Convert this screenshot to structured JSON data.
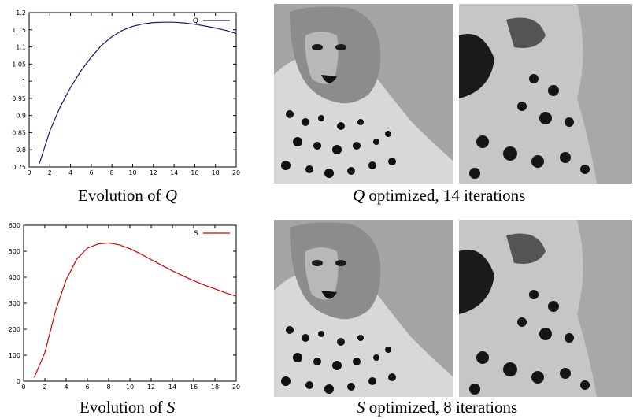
{
  "chart_data": [
    {
      "type": "line",
      "title": "",
      "xlabel": "",
      "ylabel": "",
      "xlim": [
        0,
        20
      ],
      "ylim": [
        0.75,
        1.2
      ],
      "x_ticks": [
        0,
        2,
        4,
        6,
        8,
        10,
        12,
        14,
        16,
        18,
        20
      ],
      "y_ticks": [
        0.75,
        0.8,
        0.85,
        0.9,
        0.95,
        1,
        1.05,
        1.1,
        1.15,
        1.2
      ],
      "x_tick_labels": [
        "0",
        "2",
        "4",
        "6",
        "8",
        "10",
        "12",
        "14",
        "16",
        "18",
        "20"
      ],
      "y_tick_labels": [
        "0.75",
        "0.8",
        "0.85",
        "0.9",
        "0.95",
        "1",
        "1.05",
        "1.1",
        "1.15",
        "1.2"
      ],
      "legend_position": "top-right",
      "grid": false,
      "series": [
        {
          "name": "Q",
          "color": "#1a1a6e",
          "x": [
            1,
            2,
            3,
            4,
            5,
            6,
            7,
            8,
            9,
            10,
            11,
            12,
            13,
            14,
            15,
            16,
            17,
            18,
            19,
            20
          ],
          "y": [
            0.76,
            0.855,
            0.925,
            0.982,
            1.03,
            1.07,
            1.105,
            1.13,
            1.148,
            1.16,
            1.167,
            1.171,
            1.172,
            1.172,
            1.17,
            1.166,
            1.161,
            1.155,
            1.148,
            1.139
          ]
        }
      ]
    },
    {
      "type": "line",
      "title": "",
      "xlabel": "",
      "ylabel": "",
      "xlim": [
        0,
        20
      ],
      "ylim": [
        0,
        600
      ],
      "x_ticks": [
        0,
        2,
        4,
        6,
        8,
        10,
        12,
        14,
        16,
        18,
        20
      ],
      "y_ticks": [
        0,
        100,
        200,
        300,
        400,
        500,
        600
      ],
      "x_tick_labels": [
        "0",
        "2",
        "4",
        "6",
        "8",
        "10",
        "12",
        "14",
        "16",
        "18",
        "20"
      ],
      "y_tick_labels": [
        "0",
        "100",
        "200",
        "300",
        "400",
        "500",
        "600"
      ],
      "legend_position": "top-right",
      "grid": false,
      "series": [
        {
          "name": "S",
          "color": "#dd0000",
          "x": [
            1,
            2,
            3,
            4,
            5,
            6,
            7,
            8,
            9,
            10,
            11,
            12,
            13,
            14,
            15,
            16,
            17,
            18,
            19,
            20
          ],
          "y": [
            15,
            110,
            270,
            390,
            470,
            512,
            528,
            532,
            525,
            510,
            490,
            468,
            446,
            425,
            405,
            387,
            370,
            355,
            340,
            327
          ]
        }
      ]
    }
  ],
  "captions": {
    "q_chart": {
      "prefix": "Evolution of ",
      "symbol": "Q",
      "suffix": ""
    },
    "s_chart": {
      "prefix": "Evolution of ",
      "symbol": "S",
      "suffix": ""
    },
    "q_images": {
      "prefix": "",
      "symbol": "Q",
      "suffix": " optimized, 14 iterations"
    },
    "s_images": {
      "prefix": "",
      "symbol": "S",
      "suffix": " optimized, 8 iterations"
    }
  },
  "images": {
    "q_full": "cheetah-icon",
    "q_detail": "cheetah-detail-icon",
    "s_full": "cheetah-icon",
    "s_detail": "cheetah-detail-icon"
  }
}
